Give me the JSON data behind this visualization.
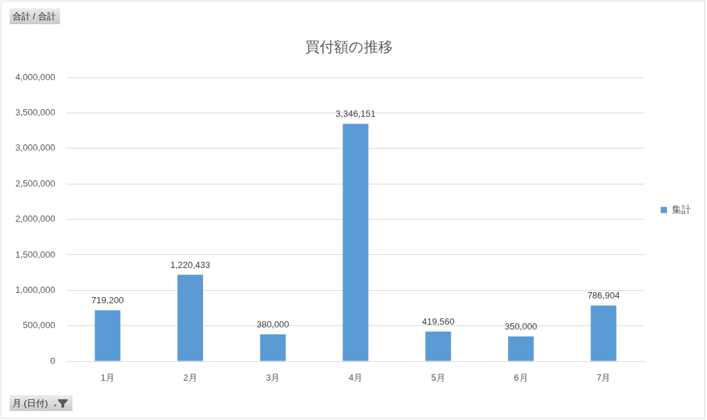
{
  "chart_data": {
    "type": "bar",
    "title": "買付額の推移",
    "categories": [
      "1月",
      "2月",
      "3月",
      "4月",
      "5月",
      "6月",
      "7月"
    ],
    "series": [
      {
        "name": "集計",
        "color": "#5b9bd5",
        "values": [
          719200,
          1220433,
          380000,
          3346151,
          419560,
          350000,
          786904
        ],
        "value_labels": [
          "719,200",
          "1,220,433",
          "380,000",
          "3,346,151",
          "419,560",
          "350,000",
          "786,904"
        ]
      }
    ],
    "ylim": [
      0,
      4000000
    ],
    "yticks": [
      {
        "value": 0,
        "label": "0"
      },
      {
        "value": 500000,
        "label": "500,000"
      },
      {
        "value": 1000000,
        "label": "1,000,000"
      },
      {
        "value": 1500000,
        "label": "1,500,000"
      },
      {
        "value": 2000000,
        "label": "2,000,000"
      },
      {
        "value": 2500000,
        "label": "2,500,000"
      },
      {
        "value": 3000000,
        "label": "3,000,000"
      },
      {
        "value": 3500000,
        "label": "3,500,000"
      },
      {
        "value": 4000000,
        "label": "4,000,000"
      }
    ],
    "grid": "y",
    "legend": "right",
    "annotations": [
      "合計 / 合計",
      "月 (日付)"
    ]
  }
}
